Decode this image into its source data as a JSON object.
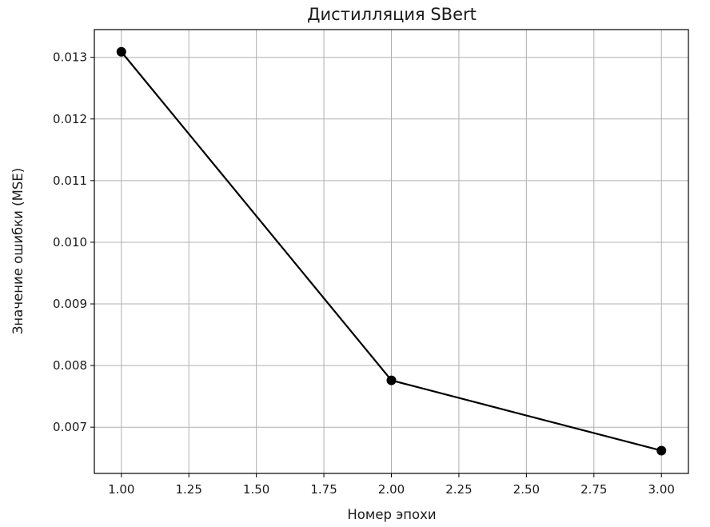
{
  "chart_data": {
    "type": "line",
    "title": "Дистилляция SBert",
    "xlabel": "Номер эпохи",
    "ylabel": "Значение ошибки (MSE)",
    "xlim": [
      0.9,
      3.1
    ],
    "ylim": [
      0.00625,
      0.01345
    ],
    "xticks": [
      1.0,
      1.25,
      1.5,
      1.75,
      2.0,
      2.25,
      2.5,
      2.75,
      3.0
    ],
    "xtick_labels": [
      "1.00",
      "1.25",
      "1.50",
      "1.75",
      "2.00",
      "2.25",
      "2.50",
      "2.75",
      "3.00"
    ],
    "yticks": [
      0.007,
      0.008,
      0.009,
      0.01,
      0.011,
      0.012,
      0.013
    ],
    "ytick_labels": [
      "0.007",
      "0.008",
      "0.009",
      "0.010",
      "0.011",
      "0.012",
      "0.013"
    ],
    "grid": true,
    "series": [
      {
        "x": [
          1,
          2,
          3
        ],
        "y": [
          0.01309,
          0.00776,
          0.00662
        ],
        "color": "#000000",
        "marker": "circle"
      }
    ]
  }
}
